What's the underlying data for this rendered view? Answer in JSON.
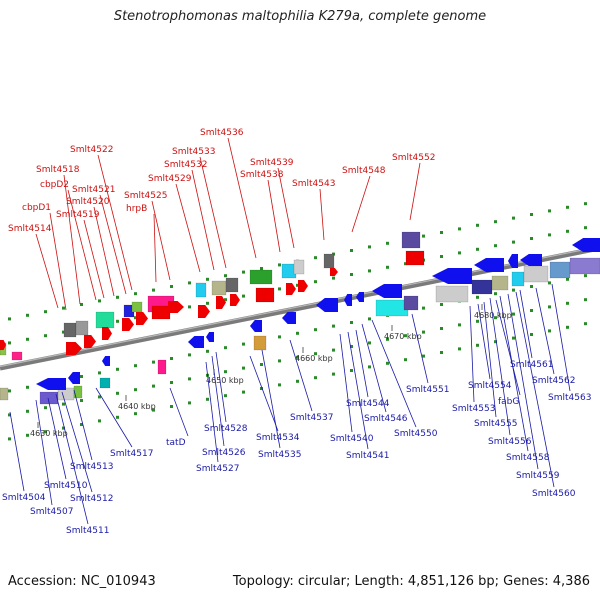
{
  "title": "Stenotrophomonas maltophilia K279a, complete genome",
  "footer": {
    "accession": "Accession: NC_010943",
    "topology": "Topology: circular; Length: 4,851,126 bp; Genes: 4,386"
  },
  "colors": {
    "forward_label": "#cc1111",
    "reverse_label": "#1a1aa8",
    "backbone": "#7a7a7a",
    "forward_gene": "#ee0000",
    "reverse_gene": "#1010ee",
    "tick": "#2a8a2a"
  },
  "scale_labels": [
    "4630 kbp",
    "4640 kbp",
    "4650 kbp",
    "4660 kbp",
    "4670 kbp",
    "4680 kbp"
  ],
  "forward_labels": [
    "Smlt4514",
    "cbpD1",
    "Smlt4518",
    "cbpD2",
    "Smlt4519",
    "Smlt4520",
    "Smlt4521",
    "Smlt4522",
    "hrpB",
    "Smlt4525",
    "Smlt4529",
    "Smlt4532",
    "Smlt4533",
    "Smlt4536",
    "Smlt4538",
    "Smlt4539",
    "Smlt4543",
    "Smlt4548",
    "Smlt4552"
  ],
  "reverse_labels": [
    "Smlt4504",
    "Smlt4507",
    "Smlt4510",
    "Smlt4511",
    "Smlt4512",
    "Smlt4513",
    "Smlt4517",
    "tatD",
    "Smlt4526",
    "Smlt4527",
    "Smlt4528",
    "Smlt4534",
    "Smlt4535",
    "Smlt4537",
    "Smlt4540",
    "Smlt4541",
    "Smlt4544",
    "Smlt4546",
    "Smlt4550",
    "Smlt4551",
    "Smlt4553",
    "Smlt4554",
    "Smlt4555",
    "fabG",
    "Smlt4556",
    "Smlt4558",
    "Smlt4559",
    "Smlt4560",
    "Smlt4561",
    "Smlt4562",
    "Smlt4563"
  ]
}
